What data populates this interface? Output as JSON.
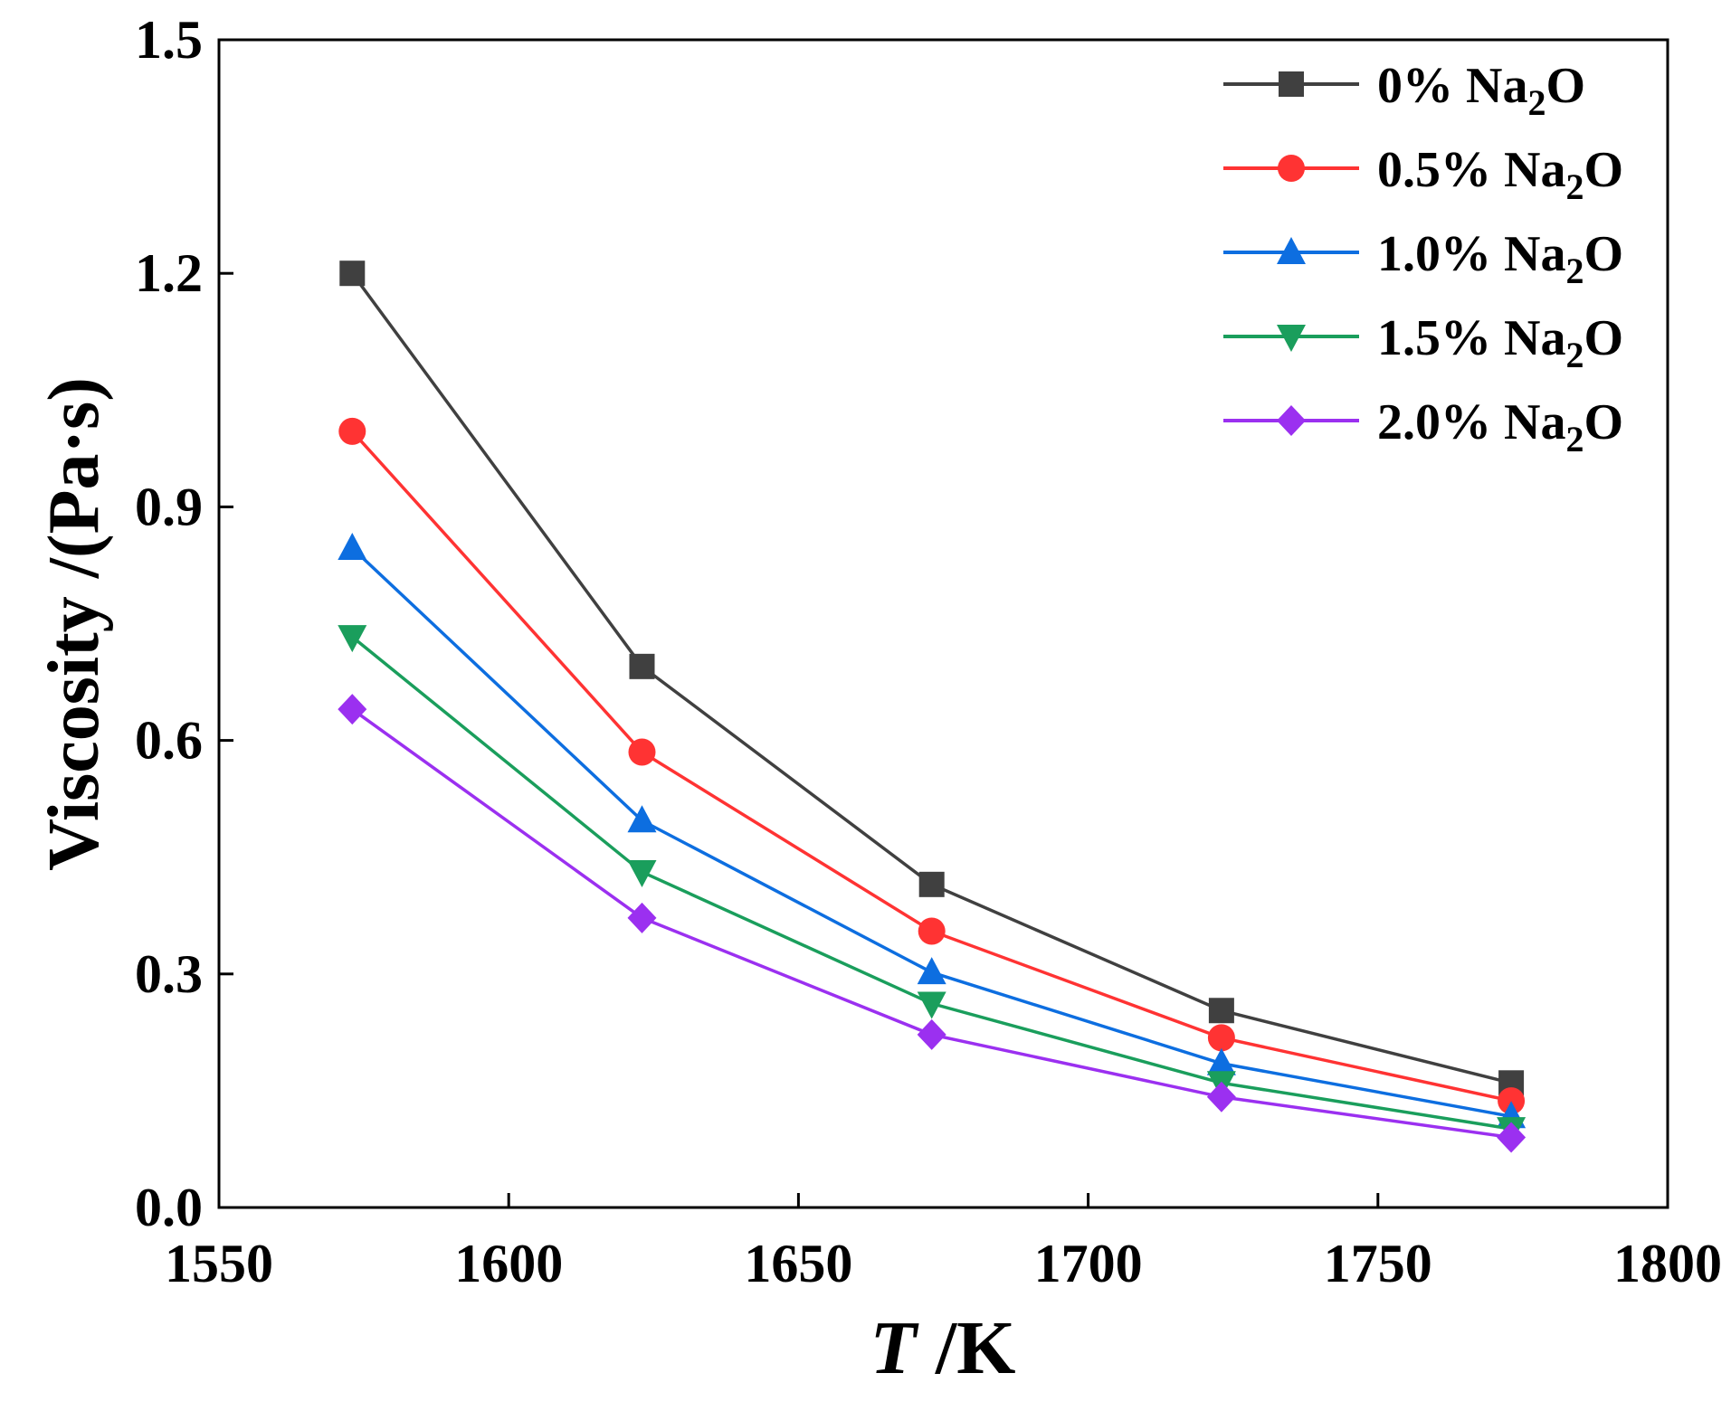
{
  "chart_data": {
    "type": "line",
    "title": "",
    "xlabel": {
      "italic": "T",
      "rest": " /K"
    },
    "ylabel": "Viscosity /(Pa·s)",
    "xlim": [
      1550,
      1800
    ],
    "ylim": [
      0.0,
      1.5
    ],
    "xticks": [
      1550,
      1600,
      1650,
      1700,
      1750,
      1800
    ],
    "xtick_labels": [
      "1550",
      "1600",
      "1650",
      "1700",
      "1750",
      "1800"
    ],
    "yticks": [
      0.0,
      0.3,
      0.6,
      0.9,
      1.2,
      1.5
    ],
    "ytick_labels": [
      "0.0",
      "0.3",
      "0.6",
      "0.9",
      "1.2",
      "1.5"
    ],
    "grid": false,
    "legend_position": "top-right",
    "x": [
      1573,
      1623,
      1673,
      1723,
      1773
    ],
    "series": [
      {
        "name": "0% Na2O",
        "label_main": "0% Na",
        "label_sub": "2",
        "label_end": "O",
        "color": "#404040",
        "marker": "square",
        "values": [
          1.2,
          0.695,
          0.415,
          0.253,
          0.16
        ]
      },
      {
        "name": "0.5% Na2O",
        "label_main": "0.5% Na",
        "label_sub": "2",
        "label_end": "O",
        "color": "#ff3333",
        "marker": "circle",
        "values": [
          0.997,
          0.585,
          0.355,
          0.218,
          0.137
        ]
      },
      {
        "name": "1.0% Na2O",
        "label_main": "1.0% Na",
        "label_sub": "2",
        "label_end": "O",
        "color": "#0d6ee0",
        "marker": "triangle-up",
        "values": [
          0.847,
          0.497,
          0.302,
          0.185,
          0.117
        ]
      },
      {
        "name": "1.5% Na2O",
        "label_main": "1.5% Na",
        "label_sub": "2",
        "label_end": "O",
        "color": "#1a9e5c",
        "marker": "triangle-down",
        "values": [
          0.733,
          0.431,
          0.262,
          0.16,
          0.101
        ]
      },
      {
        "name": "2.0% Na2O",
        "label_main": "2.0% Na",
        "label_sub": "2",
        "label_end": "O",
        "color": "#9b30f0",
        "marker": "diamond",
        "values": [
          0.64,
          0.372,
          0.222,
          0.142,
          0.09
        ]
      }
    ]
  }
}
